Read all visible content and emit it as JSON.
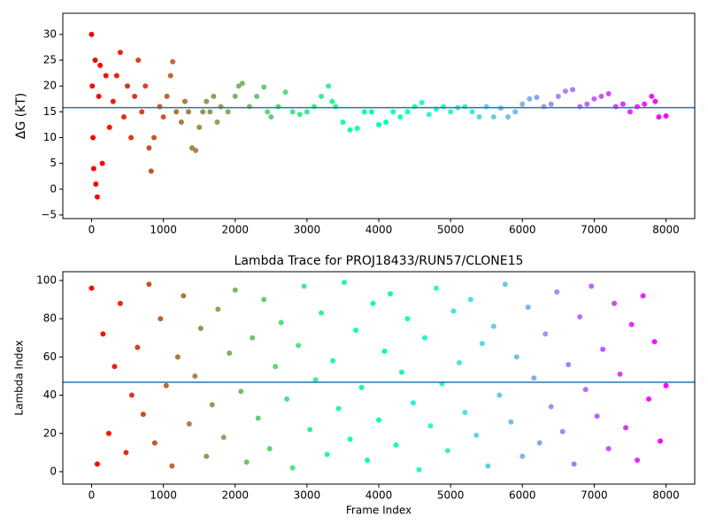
{
  "chart_data": [
    {
      "type": "scatter",
      "ylabel": "ΔG (kT)",
      "colormap": "rainbow_r",
      "x": [
        0,
        10,
        20,
        30,
        50,
        60,
        80,
        100,
        120,
        150,
        200,
        250,
        300,
        350,
        400,
        450,
        500,
        550,
        600,
        650,
        700,
        750,
        800,
        830,
        870,
        950,
        1000,
        1050,
        1100,
        1130,
        1180,
        1250,
        1300,
        1350,
        1400,
        1450,
        1500,
        1550,
        1600,
        1650,
        1700,
        1750,
        1800,
        1900,
        2000,
        2050,
        2100,
        2200,
        2300,
        2400,
        2450,
        2500,
        2600,
        2700,
        2800,
        2900,
        3000,
        3100,
        3200,
        3300,
        3350,
        3400,
        3500,
        3600,
        3700,
        3800,
        3900,
        4000,
        4100,
        4200,
        4300,
        4400,
        4500,
        4600,
        4700,
        4800,
        4900,
        5000,
        5100,
        5200,
        5300,
        5400,
        5500,
        5600,
        5700,
        5800,
        5900,
        6000,
        6100,
        6200,
        6300,
        6400,
        6500,
        6600,
        6700,
        6800,
        6900,
        7000,
        7100,
        7200,
        7300,
        7400,
        7500,
        7600,
        7700,
        7800,
        7850,
        7900,
        8000
      ],
      "values": [
        30,
        20,
        10,
        4,
        25,
        1,
        -1.5,
        18,
        24,
        5,
        22,
        12,
        17,
        22,
        26.5,
        14,
        20,
        10,
        18,
        25,
        15,
        20,
        8,
        3.5,
        10,
        16,
        14,
        18,
        22,
        24.7,
        15,
        13,
        17,
        15,
        8,
        7.5,
        12,
        15,
        17,
        15,
        18,
        13,
        16,
        15,
        18,
        20,
        20.5,
        16,
        18,
        19.8,
        15,
        14,
        16,
        18.8,
        15,
        14.5,
        15,
        16,
        18,
        20,
        17,
        16,
        13,
        11.5,
        11.8,
        15,
        15,
        12.5,
        13,
        15,
        14,
        15,
        16,
        16.8,
        14.5,
        15.5,
        16,
        15,
        15.8,
        16,
        15,
        14,
        16,
        14,
        15.7,
        14,
        15,
        16.5,
        17.5,
        17.8,
        16,
        16.5,
        18,
        19,
        19.3,
        16,
        16.5,
        17.5,
        18,
        18.5,
        16,
        16.5,
        15,
        16,
        16.5,
        18,
        17,
        14,
        14.2
      ],
      "hline": 15.8,
      "hline_color": "#1f77b4",
      "xlim": [
        -400,
        8400
      ],
      "ylim": [
        -5.7,
        34.1
      ],
      "xticks": [
        0,
        1000,
        2000,
        3000,
        4000,
        5000,
        6000,
        7000,
        8000
      ],
      "yticks": [
        {
          "value": -5,
          "label": "−5"
        },
        0,
        5,
        10,
        15,
        20,
        25,
        30
      ]
    },
    {
      "type": "scatter",
      "title": "Lambda Trace for PROJ18433/RUN57/CLONE15",
      "xlabel": "Frame Index",
      "ylabel": "Lambda Index",
      "colormap": "rainbow_r",
      "x": [
        0,
        80,
        160,
        240,
        320,
        400,
        480,
        560,
        640,
        720,
        800,
        880,
        960,
        1040,
        1120,
        1200,
        1280,
        1360,
        1440,
        1520,
        1600,
        1680,
        1760,
        1840,
        1920,
        2000,
        2080,
        2160,
        2240,
        2320,
        2400,
        2480,
        2560,
        2640,
        2720,
        2800,
        2880,
        2960,
        3040,
        3120,
        3200,
        3280,
        3360,
        3440,
        3520,
        3600,
        3680,
        3760,
        3840,
        3920,
        4000,
        4080,
        4160,
        4240,
        4320,
        4400,
        4480,
        4560,
        4640,
        4720,
        4800,
        4880,
        4960,
        5040,
        5120,
        5200,
        5280,
        5360,
        5440,
        5520,
        5600,
        5680,
        5760,
        5840,
        5920,
        6000,
        6080,
        6160,
        6240,
        6320,
        6400,
        6480,
        6560,
        6640,
        6720,
        6800,
        6880,
        6960,
        7040,
        7120,
        7200,
        7280,
        7360,
        7440,
        7520,
        7600,
        7680,
        7760,
        7840,
        7920,
        8000
      ],
      "values": [
        96,
        4,
        72,
        20,
        55,
        88,
        10,
        40,
        65,
        30,
        98,
        15,
        80,
        45,
        3,
        60,
        92,
        25,
        50,
        75,
        8,
        35,
        85,
        18,
        62,
        95,
        42,
        5,
        70,
        28,
        90,
        12,
        55,
        78,
        38,
        2,
        66,
        97,
        22,
        48,
        83,
        9,
        58,
        33,
        99,
        17,
        74,
        44,
        6,
        88,
        27,
        63,
        93,
        14,
        52,
        80,
        36,
        1,
        70,
        24,
        96,
        46,
        11,
        84,
        57,
        31,
        90,
        19,
        67,
        3,
        76,
        40,
        98,
        26,
        60,
        8,
        86,
        49,
        15,
        72,
        34,
        94,
        21,
        56,
        4,
        81,
        43,
        97,
        29,
        64,
        12,
        88,
        51,
        23,
        77,
        6,
        92,
        38,
        68,
        16,
        45
      ],
      "hline": 46.8,
      "hline_color": "#1f77b4",
      "xlim": [
        -400,
        8400
      ],
      "ylim": [
        -6.5,
        104.6
      ],
      "xticks": [
        0,
        1000,
        2000,
        3000,
        4000,
        5000,
        6000,
        7000,
        8000
      ],
      "yticks": [
        0,
        20,
        40,
        60,
        80,
        100
      ]
    }
  ]
}
